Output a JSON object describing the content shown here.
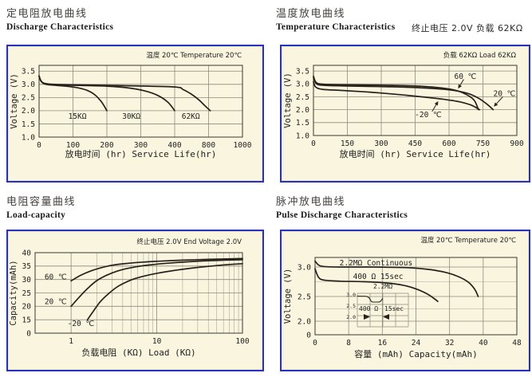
{
  "sections": [
    {
      "title_cn": "定电阻放电曲线",
      "title_en": "Discharge Characteristics"
    },
    {
      "title_cn": "温度放电曲线",
      "title_en": "Temperature Characteristics",
      "side_note": "终止电压 2.0V   负载 62KΩ"
    },
    {
      "title_cn": "电阻容量曲线",
      "title_en": "Load-capacity"
    },
    {
      "title_cn": "脉冲放电曲线",
      "title_en": "Pulse Discharge Characteristics"
    }
  ],
  "colors": {
    "panel_bg": "#f9f5de",
    "panel_border": "#2732c4",
    "grid": "#8c8c7e",
    "grid_minor": "#a9a99b",
    "plot_border": "#4a4a42",
    "curve": "#26211c",
    "text": "#222222"
  },
  "chart_data": [
    {
      "id": "discharge",
      "type": "line",
      "corner_note": "温度 20℃  Temperature 20℃",
      "xlabel": "放电时间 (hr) Service Life(hr)",
      "ylabel": "Voltage (V)",
      "x_axis": {
        "scale": "segmented",
        "anchors": [
          0,
          100,
          200,
          300,
          400,
          800,
          1000
        ],
        "ticks": [
          {
            "v": 0,
            "label": "0"
          },
          {
            "v": 100,
            "label": "100"
          },
          {
            "v": 200,
            "label": "200"
          },
          {
            "v": 300,
            "label": "300"
          },
          {
            "v": 400,
            "label": "400"
          },
          {
            "v": 800,
            "label": "800"
          },
          {
            "v": 1000,
            "label": "1000"
          }
        ]
      },
      "y_axis": {
        "scale": "linear",
        "min": 1.0,
        "max": 3.72,
        "ticks": [
          {
            "v": 1.0,
            "label": "1.0"
          },
          {
            "v": 1.5,
            "label": "1.5"
          },
          {
            "v": 2.0,
            "label": "2.0"
          },
          {
            "v": 2.5,
            "label": "2.5"
          },
          {
            "v": 3.0,
            "label": "3.0"
          },
          {
            "v": 3.5,
            "label": "3.5"
          }
        ]
      },
      "series": [
        {
          "name": "15KΩ",
          "points": [
            [
              0,
              3.32
            ],
            [
              5,
              3.15
            ],
            [
              15,
              3.02
            ],
            [
              40,
              2.97
            ],
            [
              80,
              2.93
            ],
            [
              110,
              2.88
            ],
            [
              140,
              2.78
            ],
            [
              165,
              2.6
            ],
            [
              185,
              2.32
            ],
            [
              200,
              2.0
            ]
          ]
        },
        {
          "name": "30KΩ",
          "points": [
            [
              0,
              3.3
            ],
            [
              10,
              3.06
            ],
            [
              40,
              2.99
            ],
            [
              120,
              2.96
            ],
            [
              200,
              2.93
            ],
            [
              260,
              2.87
            ],
            [
              310,
              2.76
            ],
            [
              350,
              2.58
            ],
            [
              380,
              2.32
            ],
            [
              400,
              2.0
            ]
          ]
        },
        {
          "name": "62KΩ",
          "points": [
            [
              0,
              3.3
            ],
            [
              15,
              3.04
            ],
            [
              80,
              2.99
            ],
            [
              250,
              2.95
            ],
            [
              400,
              2.9
            ],
            [
              500,
              2.8
            ],
            [
              600,
              2.62
            ],
            [
              690,
              2.4
            ],
            [
              760,
              2.18
            ],
            [
              810,
              2.0
            ]
          ]
        }
      ],
      "series_labels": [
        {
          "text": "15KΩ",
          "x": 113,
          "y": 1.78
        },
        {
          "text": "30KΩ",
          "x": 272,
          "y": 1.78
        },
        {
          "text": "62KΩ",
          "x": 590,
          "y": 1.78
        }
      ]
    },
    {
      "id": "temperature",
      "type": "line",
      "corner_note": "负载 62KΩ  Load 62KΩ",
      "xlabel": "放电时间 (hr) Service Life(hr)",
      "ylabel": "Voltage (V)",
      "x_axis": {
        "scale": "linear",
        "min": 0,
        "max": 900,
        "ticks": [
          {
            "v": 0,
            "label": "0"
          },
          {
            "v": 150,
            "label": "150"
          },
          {
            "v": 300,
            "label": "300"
          },
          {
            "v": 450,
            "label": "450"
          },
          {
            "v": 600,
            "label": "600"
          },
          {
            "v": 750,
            "label": "750"
          },
          {
            "v": 900,
            "label": "900"
          }
        ]
      },
      "y_axis": {
        "scale": "linear",
        "min": 1.0,
        "max": 3.72,
        "ticks": [
          {
            "v": 1.0,
            "label": "1.0"
          },
          {
            "v": 1.5,
            "label": "1.5"
          },
          {
            "v": 2.0,
            "label": "2.0"
          },
          {
            "v": 2.5,
            "label": "2.5"
          },
          {
            "v": 3.0,
            "label": "3.0"
          },
          {
            "v": 3.5,
            "label": "3.5"
          }
        ]
      },
      "series": [
        {
          "name": "60 ℃",
          "points": [
            [
              0,
              3.3
            ],
            [
              10,
              3.08
            ],
            [
              30,
              3.0
            ],
            [
              100,
              2.97
            ],
            [
              300,
              2.95
            ],
            [
              450,
              2.92
            ],
            [
              550,
              2.86
            ],
            [
              620,
              2.77
            ],
            [
              670,
              2.62
            ],
            [
              710,
              2.38
            ],
            [
              730,
              2.0
            ]
          ]
        },
        {
          "name": "20 ℃",
          "points": [
            [
              0,
              3.24
            ],
            [
              12,
              3.02
            ],
            [
              40,
              2.95
            ],
            [
              150,
              2.92
            ],
            [
              350,
              2.89
            ],
            [
              500,
              2.84
            ],
            [
              600,
              2.77
            ],
            [
              680,
              2.64
            ],
            [
              730,
              2.45
            ],
            [
              770,
              2.2
            ],
            [
              795,
              2.0
            ]
          ]
        },
        {
          "name": "-20 ℃",
          "points": [
            [
              0,
              3.08
            ],
            [
              10,
              2.88
            ],
            [
              40,
              2.79
            ],
            [
              120,
              2.75
            ],
            [
              250,
              2.68
            ],
            [
              400,
              2.57
            ],
            [
              500,
              2.48
            ],
            [
              580,
              2.4
            ],
            [
              650,
              2.3
            ],
            [
              700,
              2.17
            ],
            [
              735,
              2.0
            ]
          ]
        }
      ],
      "series_labels": [
        {
          "text": "60 ℃",
          "x": 672,
          "y": 3.28
        },
        {
          "text": "20 ℃",
          "x": 845,
          "y": 2.62
        },
        {
          "text": "-20 ℃",
          "x": 508,
          "y": 1.8
        }
      ],
      "arrows": [
        {
          "from": [
            665,
            3.18
          ],
          "to": [
            640,
            2.82
          ]
        },
        {
          "from": [
            838,
            2.5
          ],
          "to": [
            798,
            2.12
          ]
        },
        {
          "from": [
            525,
            1.93
          ],
          "to": [
            552,
            2.33
          ]
        }
      ]
    },
    {
      "id": "load",
      "type": "line",
      "corner_note": "终止电压 2.0V End Voltage 2.0V",
      "xlabel": "负载电阻 (KΩ) Load (KΩ)",
      "ylabel": "Capacity(mAh)",
      "x_axis": {
        "scale": "log",
        "min": 0.38,
        "max": 100,
        "ticks": [
          {
            "v": 1,
            "label": "1"
          },
          {
            "v": 10,
            "label": "10"
          },
          {
            "v": 100,
            "label": "100"
          }
        ],
        "minor": [
          2,
          3,
          4,
          5,
          6,
          7,
          8,
          9,
          20,
          30,
          40,
          50,
          60,
          70,
          80,
          90
        ]
      },
      "y_axis": {
        "scale": "segmented",
        "anchors": [
          0,
          15,
          20,
          25,
          30,
          35,
          40
        ],
        "ticks": [
          {
            "v": 0,
            "label": "0"
          },
          {
            "v": 15,
            "label": "15"
          },
          {
            "v": 20,
            "label": "20"
          },
          {
            "v": 25,
            "label": "25"
          },
          {
            "v": 30,
            "label": "30"
          },
          {
            "v": 35,
            "label": "35"
          },
          {
            "v": 40,
            "label": "40"
          }
        ]
      },
      "series": [
        {
          "name": "60 ℃",
          "points": [
            [
              1,
              29.5
            ],
            [
              1.3,
              31.6
            ],
            [
              1.7,
              33.2
            ],
            [
              2.2,
              34.3
            ],
            [
              3,
              35.3
            ],
            [
              4.5,
              36.0
            ],
            [
              7,
              36.5
            ],
            [
              10,
              36.8
            ],
            [
              20,
              37.2
            ],
            [
              40,
              37.5
            ],
            [
              100,
              37.8
            ]
          ]
        },
        {
          "name": "20 ℃",
          "points": [
            [
              1,
              20.0
            ],
            [
              1.25,
              23.5
            ],
            [
              1.6,
              27.0
            ],
            [
              2,
              29.6
            ],
            [
              2.6,
              31.6
            ],
            [
              3.5,
              33.2
            ],
            [
              5,
              34.4
            ],
            [
              8,
              35.4
            ],
            [
              15,
              36.2
            ],
            [
              40,
              37.0
            ],
            [
              100,
              37.4
            ]
          ]
        },
        {
          "name": "-20 ℃",
          "points": [
            [
              1.55,
              15.0
            ],
            [
              1.8,
              18.0
            ],
            [
              2.2,
              21.8
            ],
            [
              2.8,
              25.0
            ],
            [
              3.6,
              27.6
            ],
            [
              5,
              29.8
            ],
            [
              7,
              31.2
            ],
            [
              10,
              32.3
            ],
            [
              20,
              33.8
            ],
            [
              50,
              35.2
            ],
            [
              100,
              35.9
            ]
          ]
        }
      ],
      "series_labels": [
        {
          "text": "60 ℃",
          "x": 0.66,
          "y": 31.0
        },
        {
          "text": "20 ℃",
          "x": 0.66,
          "y": 21.8
        },
        {
          "text": "-20 ℃",
          "x": 1.3,
          "y": 10.5
        }
      ]
    },
    {
      "id": "pulse",
      "type": "line",
      "corner_note": "温度 20℃ Temperature 20℃",
      "xlabel": "容量 (mAh)  Capacity(mAh)",
      "ylabel": "Voltage (V)",
      "x_axis": {
        "scale": "linear",
        "min": 0,
        "max": 48,
        "ticks": [
          {
            "v": 0,
            "label": "0"
          },
          {
            "v": 8,
            "label": "8"
          },
          {
            "v": 16,
            "label": "16"
          },
          {
            "v": 24,
            "label": "24"
          },
          {
            "v": 32,
            "label": "32"
          },
          {
            "v": 40,
            "label": "40"
          },
          {
            "v": 48,
            "label": "48"
          }
        ]
      },
      "y_axis": {
        "scale": "segmented",
        "anchors": [
          0,
          2.0,
          2.5,
          3.0,
          3.35
        ],
        "fracs": [
          0,
          0.175,
          0.495,
          0.876,
          1.0
        ],
        "ticks": [
          {
            "v": 0,
            "label": "0"
          },
          {
            "v": 2.0,
            "label": "2.0"
          },
          {
            "v": 2.5,
            "label": "2.5"
          },
          {
            "v": 3.0,
            "label": "3.0"
          }
        ],
        "minor": [
          2.25,
          2.75
        ]
      },
      "series": [
        {
          "name": "2.2MΩ Continuous",
          "points": [
            [
              0,
              3.22
            ],
            [
              0.8,
              3.08
            ],
            [
              2,
              3.02
            ],
            [
              6,
              3.0
            ],
            [
              14,
              3.0
            ],
            [
              22,
              2.99
            ],
            [
              27,
              2.96
            ],
            [
              31,
              2.91
            ],
            [
              34,
              2.84
            ],
            [
              36.5,
              2.74
            ],
            [
              38,
              2.62
            ],
            [
              38.8,
              2.5
            ]
          ]
        },
        {
          "name": "400 Ω 15sec",
          "points": [
            [
              0,
              2.97
            ],
            [
              0.8,
              2.83
            ],
            [
              2,
              2.78
            ],
            [
              6,
              2.76
            ],
            [
              12,
              2.75
            ],
            [
              17,
              2.73
            ],
            [
              21,
              2.69
            ],
            [
              24,
              2.63
            ],
            [
              26.5,
              2.55
            ],
            [
              28.3,
              2.46
            ],
            [
              29.2,
              2.4
            ]
          ]
        }
      ],
      "series_labels": [
        {
          "text": "2.2MΩ Continuous",
          "x": 14.5,
          "y": 3.14
        },
        {
          "text": "400 Ω 15sec",
          "x": 15.0,
          "y": 2.84
        }
      ],
      "inset": {
        "top_label": "2.2MΩ",
        "label_left": "400 Ω",
        "label_right": "15sec",
        "y_labels": [
          "3.0",
          "2.5",
          "2.0"
        ]
      }
    }
  ]
}
